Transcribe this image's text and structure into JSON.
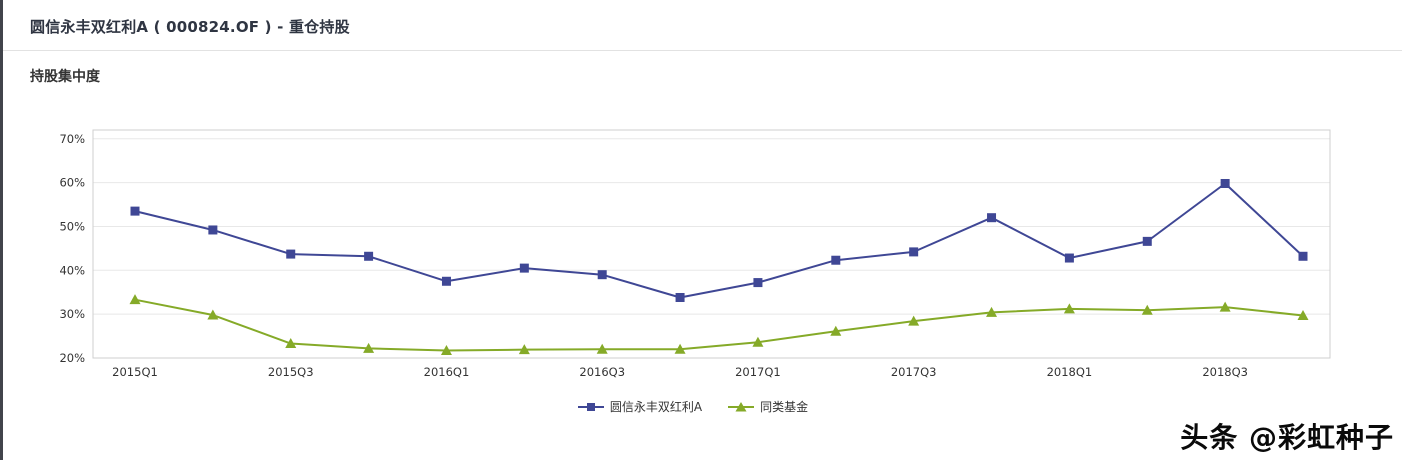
{
  "header": {
    "title": "圆信永丰双红利A ( 000824.OF ) - 重仓持股"
  },
  "section": {
    "label": "持股集中度"
  },
  "chart_data": {
    "type": "line",
    "title": "持股集中度",
    "categories": [
      "2015Q1",
      "2015Q2",
      "2015Q3",
      "2015Q4",
      "2016Q1",
      "2016Q2",
      "2016Q3",
      "2016Q4",
      "2017Q1",
      "2017Q2",
      "2017Q3",
      "2017Q4",
      "2018Q1",
      "2018Q2",
      "2018Q3",
      "2018Q4"
    ],
    "x_tick_labels": [
      "2015Q1",
      "2015Q3",
      "2016Q1",
      "2016Q3",
      "2017Q1",
      "2017Q3",
      "2018Q1",
      "2018Q3"
    ],
    "y_ticks": [
      "20%",
      "30%",
      "40%",
      "50%",
      "60%",
      "70%"
    ],
    "ylim": [
      20,
      70
    ],
    "xlabel": "",
    "ylabel": "",
    "grid": true,
    "legend_position": "bottom",
    "series": [
      {
        "name": "圆信永丰双红利A",
        "color": "#3f4795",
        "marker": "square",
        "values": [
          53.5,
          49.2,
          43.7,
          43.2,
          37.5,
          40.5,
          39.0,
          33.8,
          37.2,
          42.3,
          44.2,
          52.0,
          42.8,
          46.6,
          59.8,
          43.2
        ]
      },
      {
        "name": "同类基金",
        "color": "#85aa28",
        "marker": "triangle",
        "values": [
          33.3,
          29.8,
          23.3,
          22.2,
          21.7,
          21.9,
          22.0,
          22.0,
          23.6,
          26.1,
          28.4,
          30.4,
          31.2,
          30.9,
          31.6,
          29.7
        ]
      }
    ]
  },
  "watermark": {
    "text": "头条 @彩虹种子"
  }
}
